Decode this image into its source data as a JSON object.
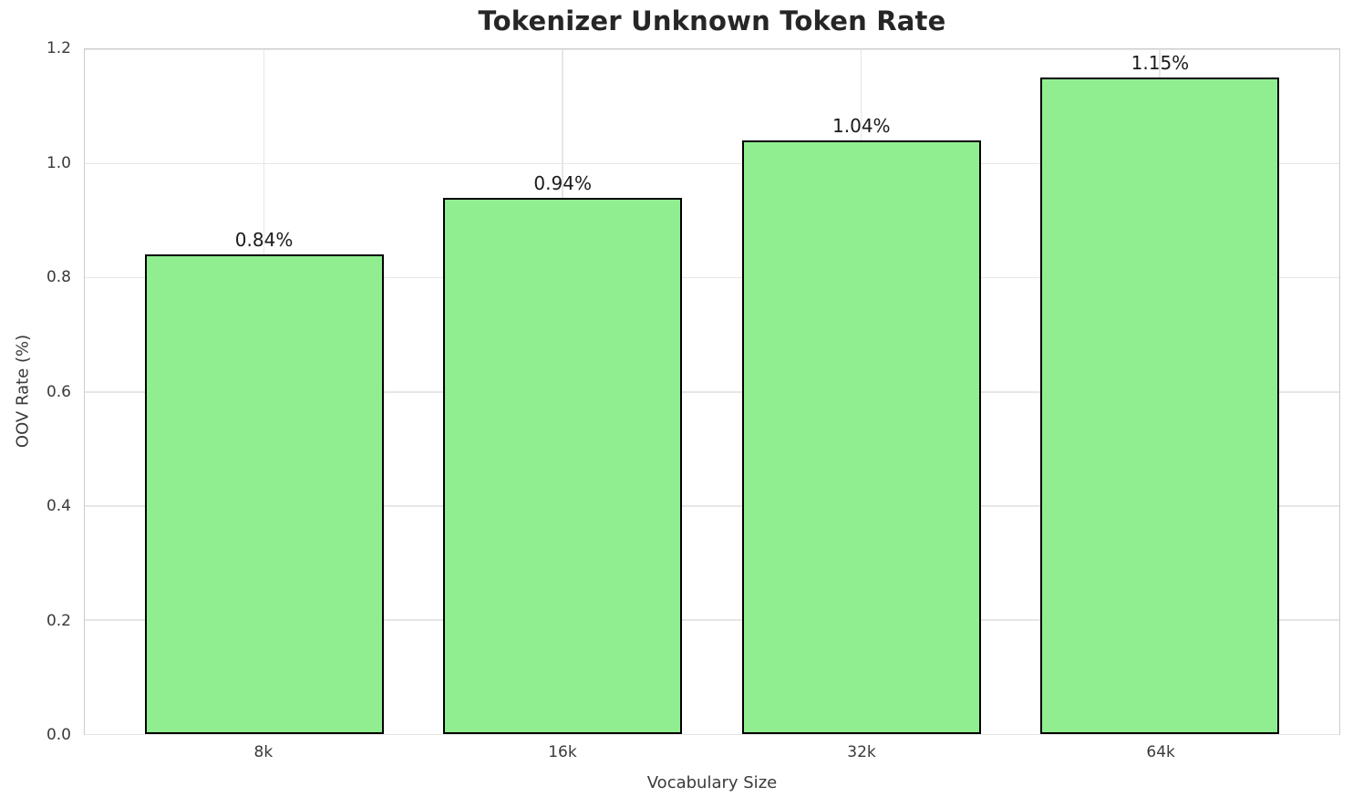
{
  "chart_data": {
    "type": "bar",
    "title": "Tokenizer Unknown Token Rate",
    "xlabel": "Vocabulary Size",
    "ylabel": "OOV Rate (%)",
    "categories": [
      "8k",
      "16k",
      "32k",
      "64k"
    ],
    "values": [
      0.84,
      0.94,
      1.04,
      1.15
    ],
    "value_labels": [
      "0.84%",
      "0.94%",
      "1.04%",
      "1.15%"
    ],
    "ylim": [
      0.0,
      1.2
    ],
    "yticks": [
      "0.0",
      "0.2",
      "0.4",
      "0.6",
      "0.8",
      "1.0",
      "1.2"
    ],
    "grid": true,
    "legend": "none",
    "bar_color": "#90EE90",
    "bar_edge_color": "#000000",
    "bar_width_fraction": 0.8,
    "category_margin": 0.6
  }
}
